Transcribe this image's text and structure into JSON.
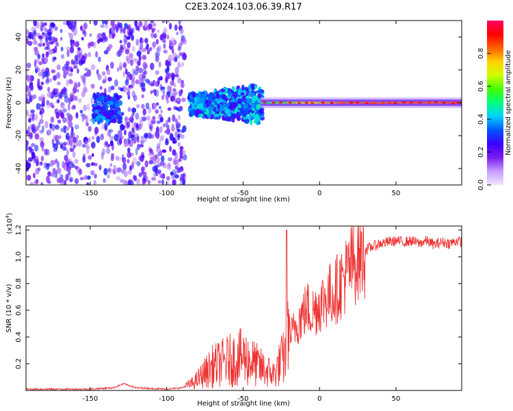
{
  "title": "C2E3.2024.103.06.39.R17",
  "chart_data": [
    {
      "type": "heatmap",
      "xlabel": "Height of straight line (km)",
      "ylabel": "Frequency (Hz)",
      "xlim": [
        -192,
        93
      ],
      "ylim": [
        -50,
        50
      ],
      "xticks": [
        -150,
        -100,
        -50,
        0,
        50
      ],
      "yticks": [
        -40,
        -20,
        0,
        20,
        40
      ],
      "colorbar": {
        "label": "Normalized spectral amplitude",
        "range": [
          0.0,
          1.0
        ],
        "ticks": [
          "0.0",
          "0.2",
          "0.4",
          "0.6",
          "0.8"
        ],
        "colors": [
          "#f0e6ff",
          "#c79cff",
          "#7a1cf0",
          "#3b00ff",
          "#0055ff",
          "#00d0ff",
          "#00ff80",
          "#40ff00",
          "#d0ff00",
          "#ffd000",
          "#ff6000",
          "#ff0000",
          "#ff0060"
        ]
      },
      "regions": [
        {
          "x_range": [
            -192,
            -88
          ],
          "freq_range": [
            -50,
            50
          ],
          "level": "scattered noise 0.05-0.3"
        },
        {
          "x_range": [
            -148,
            -130
          ],
          "freq_range": [
            -12,
            5
          ],
          "level": "0.2-0.45"
        },
        {
          "x_range": [
            -85,
            -38
          ],
          "freq_range": [
            -10,
            12
          ],
          "level": "0.2-0.5"
        },
        {
          "x_range": [
            -38,
            93
          ],
          "freq_range": [
            -3,
            3
          ],
          "level": "0.5-0.95 narrow band at 0 Hz"
        }
      ]
    },
    {
      "type": "line",
      "xlabel": "Height of straight line (km)",
      "ylabel": "SNR (10 * v/v)",
      "scale_label": "(x10",
      "scale_exp": "4",
      "scale_close": ")",
      "xlim": [
        -192,
        93
      ],
      "ylim": [
        0.0,
        1.23
      ],
      "xticks": [
        -150,
        -100,
        -50,
        0,
        50
      ],
      "yticks": [
        "0.2",
        "0.4",
        "0.6",
        "0.8",
        "1.0",
        "1.2"
      ],
      "color": "#ee3333",
      "x": [
        -192,
        -150,
        -135,
        -128,
        -120,
        -100,
        -90,
        -82,
        -76,
        -70,
        -60,
        -50,
        -45,
        -40,
        -35,
        -30,
        -25,
        -22,
        -21,
        -18,
        -15,
        -12,
        -8,
        -5,
        0,
        5,
        10,
        15,
        20,
        25,
        30,
        35,
        40,
        45,
        50,
        55,
        60,
        65,
        70,
        75,
        80,
        85,
        90,
        93
      ],
      "values": [
        0.01,
        0.01,
        0.02,
        0.05,
        0.02,
        0.01,
        0.02,
        0.06,
        0.12,
        0.18,
        0.22,
        0.25,
        0.22,
        0.18,
        0.15,
        0.12,
        0.22,
        0.26,
        0.45,
        0.42,
        0.5,
        0.55,
        0.62,
        0.58,
        0.65,
        0.7,
        0.74,
        0.82,
        0.92,
        1.0,
        1.05,
        1.08,
        1.1,
        1.11,
        1.12,
        1.11,
        1.12,
        1.1,
        1.12,
        1.09,
        1.11,
        1.1,
        1.12,
        1.11
      ]
    }
  ]
}
